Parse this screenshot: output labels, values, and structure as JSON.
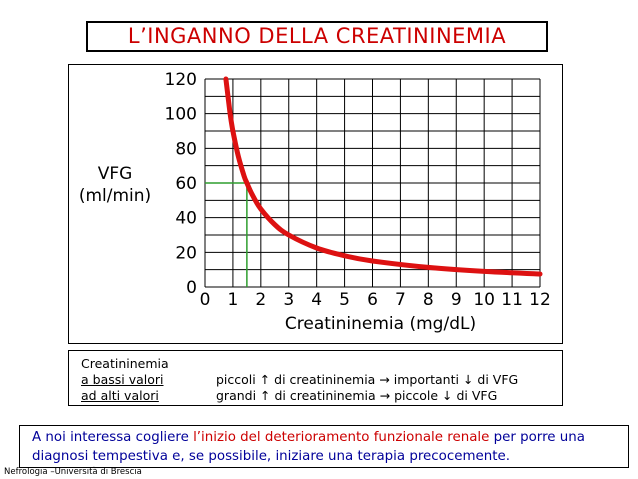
{
  "header": {
    "title": "L’INGANNO DELLA CREATININEMIA"
  },
  "chart_data": {
    "type": "line",
    "title": "L’INGANNO DELLA CREATININEMIA",
    "xlabel": "Creatininemia (mg/dL)",
    "ylabel_lines": [
      "VFG",
      "(ml/min)"
    ],
    "xlim": [
      0,
      12
    ],
    "ylim": [
      0,
      120
    ],
    "x_ticks": [
      0,
      1,
      2,
      3,
      4,
      5,
      6,
      7,
      8,
      9,
      10,
      11,
      12
    ],
    "y_ticks": [
      0,
      20,
      40,
      60,
      80,
      100,
      120
    ],
    "grid": true,
    "series": [
      {
        "color": "#dd1111",
        "x": [
          0.75,
          0.9,
          1.0,
          1.2,
          1.4,
          1.5,
          1.7,
          2.0,
          2.5,
          3.0,
          4.0,
          5.0,
          6.0,
          8.0,
          10.0,
          12.0
        ],
        "y": [
          120,
          100,
          90,
          75,
          64,
          60,
          53,
          45,
          36,
          30,
          22.5,
          18,
          15,
          11.3,
          9,
          7.5
        ]
      }
    ],
    "annotations": [
      {
        "type": "reference-lines",
        "x": 1.5,
        "y": 60,
        "color": "#2e9e2e"
      }
    ]
  },
  "legend": {
    "heading": "Creatininemia",
    "row1_label": "a bassi valori",
    "row1_text": "piccoli ↑ di creatininemia → importanti ↓ di VFG",
    "row2_label": "ad alti valori",
    "row2_text": "grandi ↑ di creatininemia → piccole ↓ di VFG"
  },
  "note": {
    "part1": "A noi interessa cogliere ",
    "part2": "l’inizio del deterioramento funzionale renale",
    "part3": " per porre una diagnosi tempestiva e, se possibile, iniziare una terapia precocemente."
  },
  "footer": {
    "text": "Nefrologia –Università di Brescia"
  },
  "colors": {
    "title": "#cc0000",
    "curve": "#dd1111",
    "reference": "#2e9e2e",
    "note": "#000099"
  }
}
